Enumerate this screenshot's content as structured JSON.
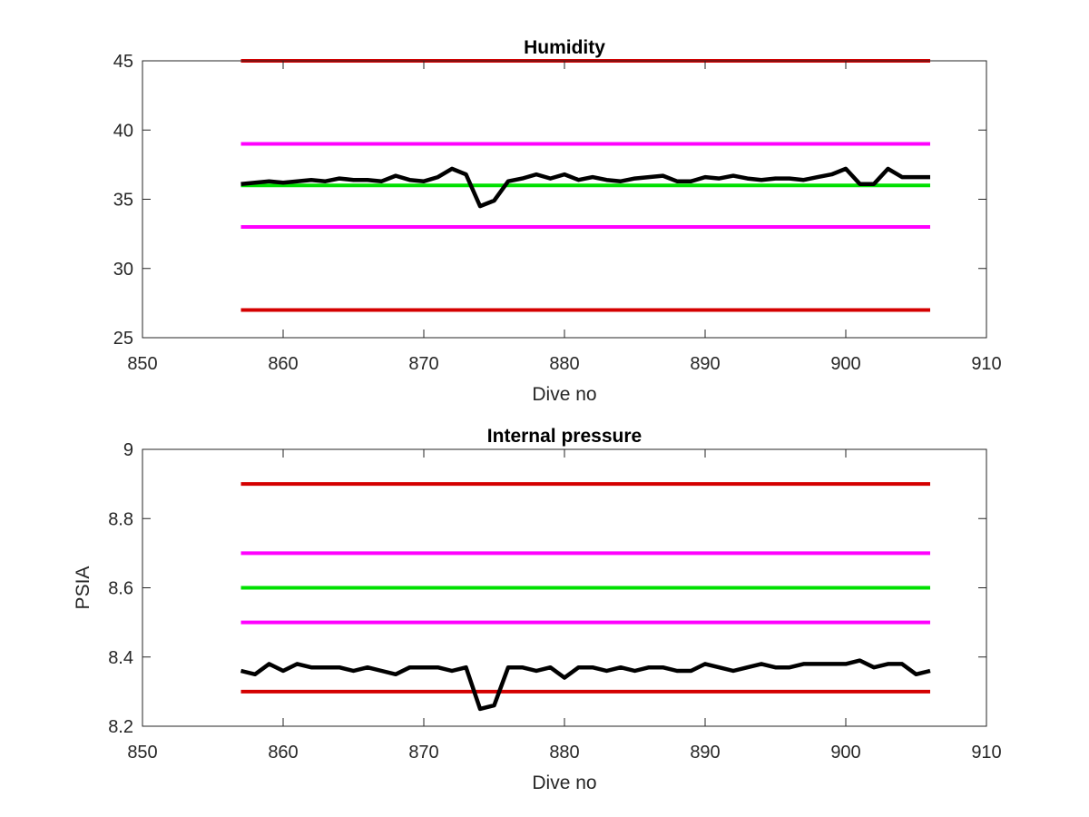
{
  "chart_data": [
    {
      "type": "line",
      "title": "Humidity",
      "xlabel": "Dive no",
      "ylabel": "",
      "xlim": [
        850,
        910
      ],
      "ylim": [
        25,
        45
      ],
      "xticks": [
        850,
        860,
        870,
        880,
        890,
        900,
        910
      ],
      "yticks": [
        25,
        30,
        35,
        40,
        45
      ],
      "grid": false,
      "series": [
        {
          "color": "#d40000",
          "x": [
            857,
            906
          ],
          "values": [
            45,
            45
          ]
        },
        {
          "color": "#ff00ff",
          "x": [
            857,
            906
          ],
          "values": [
            39,
            39
          ]
        },
        {
          "color": "#00e000",
          "x": [
            857,
            906
          ],
          "values": [
            36,
            36
          ]
        },
        {
          "color": "#ff00ff",
          "x": [
            857,
            906
          ],
          "values": [
            33,
            33
          ]
        },
        {
          "color": "#d40000",
          "x": [
            857,
            906
          ],
          "values": [
            27,
            27
          ]
        },
        {
          "color": "#000000",
          "x": [
            857,
            858,
            859,
            860,
            861,
            862,
            863,
            864,
            865,
            866,
            867,
            868,
            869,
            870,
            871,
            872,
            873,
            874,
            875,
            876,
            877,
            878,
            879,
            880,
            881,
            882,
            883,
            884,
            885,
            886,
            887,
            888,
            889,
            890,
            891,
            892,
            893,
            894,
            895,
            896,
            897,
            898,
            899,
            900,
            901,
            902,
            903,
            904,
            905,
            906
          ],
          "values": [
            36.1,
            36.2,
            36.3,
            36.2,
            36.3,
            36.4,
            36.3,
            36.5,
            36.4,
            36.4,
            36.3,
            36.7,
            36.4,
            36.3,
            36.6,
            37.2,
            36.8,
            34.5,
            34.9,
            36.3,
            36.5,
            36.8,
            36.5,
            36.8,
            36.4,
            36.6,
            36.4,
            36.3,
            36.5,
            36.6,
            36.7,
            36.3,
            36.3,
            36.6,
            36.5,
            36.7,
            36.5,
            36.4,
            36.5,
            36.5,
            36.4,
            36.6,
            36.8,
            37.2,
            36.1,
            36.1,
            37.2,
            36.6,
            36.6,
            36.6
          ]
        }
      ]
    },
    {
      "type": "line",
      "title": "Internal pressure",
      "xlabel": "Dive no",
      "ylabel": "PSIA",
      "xlim": [
        850,
        910
      ],
      "ylim": [
        8.2,
        9
      ],
      "xticks": [
        850,
        860,
        870,
        880,
        890,
        900,
        910
      ],
      "yticks": [
        "8.2",
        "8.4",
        "8.6",
        "8.8",
        "9"
      ],
      "grid": false,
      "series": [
        {
          "color": "#d40000",
          "x": [
            857,
            906
          ],
          "values": [
            8.9,
            8.9
          ]
        },
        {
          "color": "#ff00ff",
          "x": [
            857,
            906
          ],
          "values": [
            8.7,
            8.7
          ]
        },
        {
          "color": "#00e000",
          "x": [
            857,
            906
          ],
          "values": [
            8.6,
            8.6
          ]
        },
        {
          "color": "#ff00ff",
          "x": [
            857,
            906
          ],
          "values": [
            8.5,
            8.5
          ]
        },
        {
          "color": "#d40000",
          "x": [
            857,
            906
          ],
          "values": [
            8.3,
            8.3
          ]
        },
        {
          "color": "#000000",
          "x": [
            857,
            858,
            859,
            860,
            861,
            862,
            863,
            864,
            865,
            866,
            867,
            868,
            869,
            870,
            871,
            872,
            873,
            874,
            875,
            876,
            877,
            878,
            879,
            880,
            881,
            882,
            883,
            884,
            885,
            886,
            887,
            888,
            889,
            890,
            891,
            892,
            893,
            894,
            895,
            896,
            897,
            898,
            899,
            900,
            901,
            902,
            903,
            904,
            905,
            906
          ],
          "values": [
            8.36,
            8.35,
            8.38,
            8.36,
            8.38,
            8.37,
            8.37,
            8.37,
            8.36,
            8.37,
            8.36,
            8.35,
            8.37,
            8.37,
            8.37,
            8.36,
            8.37,
            8.25,
            8.26,
            8.37,
            8.37,
            8.36,
            8.37,
            8.34,
            8.37,
            8.37,
            8.36,
            8.37,
            8.36,
            8.37,
            8.37,
            8.36,
            8.36,
            8.38,
            8.37,
            8.36,
            8.37,
            8.38,
            8.37,
            8.37,
            8.38,
            8.38,
            8.38,
            8.38,
            8.39,
            8.37,
            8.38,
            8.38,
            8.35,
            8.36
          ]
        }
      ]
    }
  ]
}
